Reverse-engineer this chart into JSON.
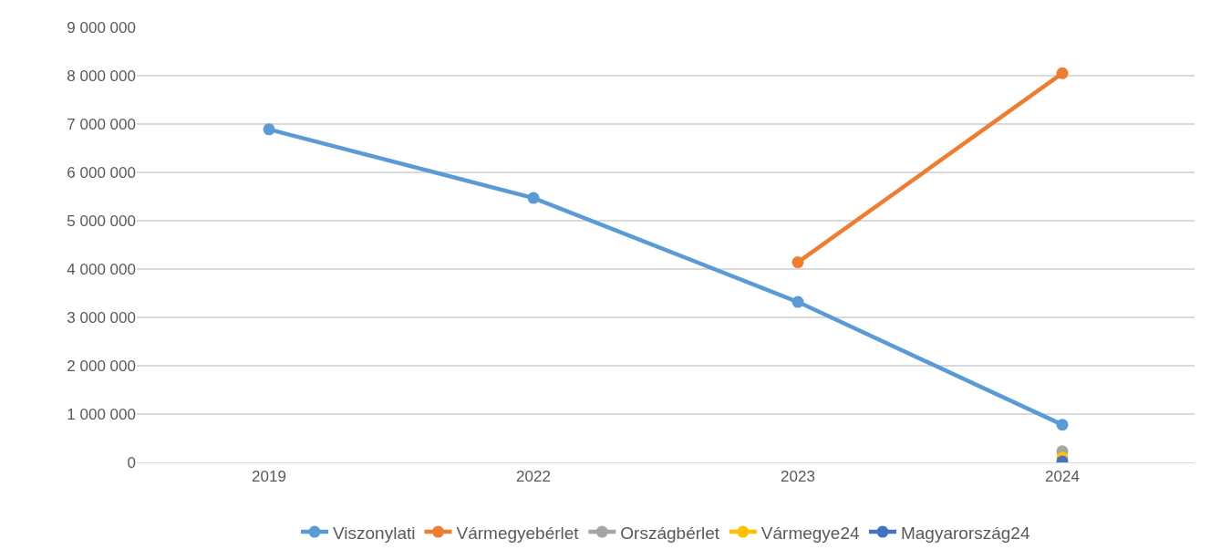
{
  "chart_data": {
    "type": "line",
    "categories": [
      "2019",
      "2022",
      "2023",
      "2024"
    ],
    "series": [
      {
        "name": "Viszonylati",
        "color": "#5b9bd5",
        "values": [
          6890000,
          5470000,
          3320000,
          780000
        ]
      },
      {
        "name": "Vármegyebérlet",
        "color": "#ed7d31",
        "values": [
          null,
          null,
          4140000,
          8050000
        ]
      },
      {
        "name": "Országbérlet",
        "color": "#a5a5a5",
        "values": [
          null,
          null,
          null,
          230000
        ]
      },
      {
        "name": "Vármegye24",
        "color": "#ffc000",
        "values": [
          null,
          null,
          null,
          100000
        ]
      },
      {
        "name": "Magyarország24",
        "color": "#4472c4",
        "values": [
          null,
          null,
          null,
          20000
        ]
      }
    ],
    "ylim": [
      0,
      9000000
    ],
    "yticks": [
      {
        "value": 0,
        "label": "0"
      },
      {
        "value": 1000000,
        "label": "1 000 000"
      },
      {
        "value": 2000000,
        "label": "2 000 000"
      },
      {
        "value": 3000000,
        "label": "3 000 000"
      },
      {
        "value": 4000000,
        "label": "4 000 000"
      },
      {
        "value": 5000000,
        "label": "5 000 000"
      },
      {
        "value": 6000000,
        "label": "6 000 000"
      },
      {
        "value": 7000000,
        "label": "7 000 000"
      },
      {
        "value": 8000000,
        "label": "8 000 000"
      },
      {
        "value": 9000000,
        "label": "9 000 000"
      }
    ],
    "grid": "y",
    "legend": "bottom",
    "marker": "circle",
    "line_style": "solid"
  }
}
